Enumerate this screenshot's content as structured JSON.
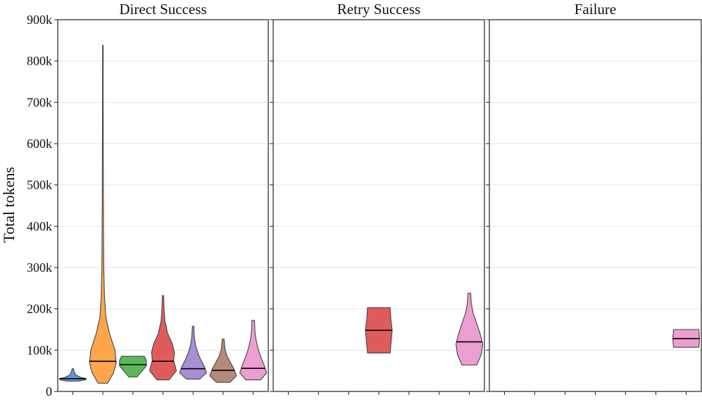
{
  "chart_data": {
    "type": "violin",
    "ylabel": "Total tokens",
    "ylim": [
      0,
      900000
    ],
    "ytick_values": [
      0,
      100000,
      200000,
      300000,
      400000,
      500000,
      600000,
      700000,
      800000,
      900000
    ],
    "ytick_labels": [
      "0",
      "100k",
      "200k",
      "300k",
      "400k",
      "500k",
      "600k",
      "700k",
      "800k",
      "900k"
    ],
    "grid": true,
    "categories_count": 7,
    "series_colors": [
      "#5b9bd5",
      "#ffa64d",
      "#5cb85c",
      "#e05c5c",
      "#a98fd1",
      "#b58a7d",
      "#ec9ed1"
    ],
    "panels": [
      {
        "title": "Direct Success",
        "violins": [
          {
            "category": 0,
            "color": "#5b9bd5",
            "min": 25000,
            "max": 55000,
            "median": 31000,
            "profile": [
              [
                25000,
                0.4
              ],
              [
                28000,
                0.95
              ],
              [
                31000,
                1.0
              ],
              [
                34000,
                0.6
              ],
              [
                40000,
                0.22
              ],
              [
                48000,
                0.1
              ],
              [
                55000,
                0.05
              ]
            ]
          },
          {
            "category": 1,
            "color": "#ffa64d",
            "min": 20000,
            "max": 838000,
            "median": 73000,
            "profile": [
              [
                20000,
                0.35
              ],
              [
                45000,
                0.8
              ],
              [
                70000,
                1.0
              ],
              [
                100000,
                0.9
              ],
              [
                140000,
                0.5
              ],
              [
                180000,
                0.22
              ],
              [
                230000,
                0.12
              ],
              [
                300000,
                0.07
              ],
              [
                400000,
                0.05
              ],
              [
                550000,
                0.035
              ],
              [
                700000,
                0.025
              ],
              [
                838000,
                0.02
              ]
            ]
          },
          {
            "category": 2,
            "color": "#5cb85c",
            "min": 35000,
            "max": 85000,
            "median": 65000,
            "profile": [
              [
                35000,
                0.3
              ],
              [
                50000,
                0.7
              ],
              [
                62000,
                1.0
              ],
              [
                75000,
                1.0
              ],
              [
                85000,
                0.85
              ]
            ]
          },
          {
            "category": 3,
            "color": "#e05c5c",
            "min": 28000,
            "max": 232000,
            "median": 73000,
            "profile": [
              [
                28000,
                0.45
              ],
              [
                50000,
                1.0
              ],
              [
                75000,
                0.8
              ],
              [
                95000,
                0.85
              ],
              [
                115000,
                0.7
              ],
              [
                140000,
                0.35
              ],
              [
                170000,
                0.15
              ],
              [
                200000,
                0.08
              ],
              [
                232000,
                0.05
              ]
            ]
          },
          {
            "category": 4,
            "color": "#a98fd1",
            "min": 30000,
            "max": 158000,
            "median": 55000,
            "profile": [
              [
                30000,
                0.5
              ],
              [
                45000,
                1.0
              ],
              [
                60000,
                0.85
              ],
              [
                75000,
                0.6
              ],
              [
                90000,
                0.4
              ],
              [
                110000,
                0.2
              ],
              [
                130000,
                0.1
              ],
              [
                158000,
                0.05
              ]
            ]
          },
          {
            "category": 5,
            "color": "#b58a7d",
            "min": 22000,
            "max": 127000,
            "median": 51000,
            "profile": [
              [
                22000,
                0.5
              ],
              [
                38000,
                1.0
              ],
              [
                55000,
                0.8
              ],
              [
                70000,
                0.55
              ],
              [
                85000,
                0.3
              ],
              [
                100000,
                0.15
              ],
              [
                127000,
                0.06
              ]
            ]
          },
          {
            "category": 6,
            "color": "#ec9ed1",
            "min": 28000,
            "max": 172000,
            "median": 56000,
            "profile": [
              [
                28000,
                0.55
              ],
              [
                45000,
                1.0
              ],
              [
                65000,
                0.8
              ],
              [
                85000,
                0.55
              ],
              [
                105000,
                0.35
              ],
              [
                130000,
                0.18
              ],
              [
                150000,
                0.12
              ],
              [
                172000,
                0.1
              ]
            ]
          }
        ]
      },
      {
        "title": "Retry Success",
        "violins": [
          {
            "category": 3,
            "color": "#e05c5c",
            "min": 93000,
            "max": 203000,
            "median": 148000,
            "profile": [
              [
                93000,
                0.85
              ],
              [
                120000,
                0.92
              ],
              [
                148000,
                1.0
              ],
              [
                175000,
                0.9
              ],
              [
                203000,
                0.85
              ]
            ]
          },
          {
            "category": 6,
            "color": "#ec9ed1",
            "min": 64000,
            "max": 238000,
            "median": 120000,
            "profile": [
              [
                64000,
                0.55
              ],
              [
                90000,
                0.9
              ],
              [
                115000,
                1.0
              ],
              [
                140000,
                0.8
              ],
              [
                165000,
                0.55
              ],
              [
                190000,
                0.28
              ],
              [
                215000,
                0.14
              ],
              [
                238000,
                0.1
              ]
            ]
          }
        ]
      },
      {
        "title": "Failure",
        "violins": [
          {
            "category": 6,
            "color": "#ec9ed1",
            "min": 107000,
            "max": 150000,
            "median": 128000,
            "profile": [
              [
                107000,
                0.95
              ],
              [
                128000,
                1.0
              ],
              [
                150000,
                0.95
              ]
            ]
          }
        ]
      }
    ]
  }
}
